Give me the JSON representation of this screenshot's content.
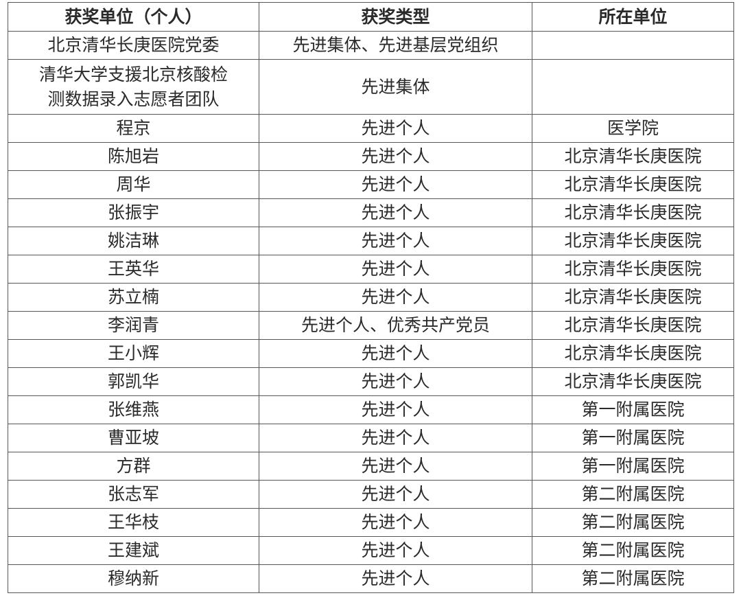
{
  "headers": [
    "获奖单位（个人）",
    "获奖类型",
    "所在单位"
  ],
  "rows": [
    {
      "name": "北京清华长庚医院党委",
      "type": "先进集体、先进基层党组织",
      "unit": ""
    },
    {
      "name": "清华大学支援北京核酸检测数据录入志愿者团队",
      "name_line1": "清华大学支援北京核酸检",
      "name_line2": "测数据录入志愿者团队",
      "type": "先进集体",
      "unit": ""
    },
    {
      "name": "程京",
      "type": "先进个人",
      "unit": "医学院"
    },
    {
      "name": "陈旭岩",
      "type": "先进个人",
      "unit": "北京清华长庚医院"
    },
    {
      "name": "周华",
      "type": "先进个人",
      "unit": "北京清华长庚医院"
    },
    {
      "name": "张振宇",
      "type": "先进个人",
      "unit": "北京清华长庚医院"
    },
    {
      "name": "姚洁琳",
      "type": "先进个人",
      "unit": "北京清华长庚医院"
    },
    {
      "name": "王英华",
      "type": "先进个人",
      "unit": "北京清华长庚医院"
    },
    {
      "name": "苏立楠",
      "type": "先进个人",
      "unit": "北京清华长庚医院"
    },
    {
      "name": "李润青",
      "type": "先进个人、优秀共产党员",
      "unit": "北京清华长庚医院"
    },
    {
      "name": "王小辉",
      "type": "先进个人",
      "unit": "北京清华长庚医院"
    },
    {
      "name": "郭凯华",
      "type": "先进个人",
      "unit": "北京清华长庚医院"
    },
    {
      "name": "张维燕",
      "type": "先进个人",
      "unit": "第一附属医院"
    },
    {
      "name": "曹亚坡",
      "type": "先进个人",
      "unit": "第一附属医院"
    },
    {
      "name": "方群",
      "type": "先进个人",
      "unit": "第一附属医院"
    },
    {
      "name": "张志军",
      "type": "先进个人",
      "unit": "第二附属医院"
    },
    {
      "name": "王华枝",
      "type": "先进个人",
      "unit": "第二附属医院"
    },
    {
      "name": "王建斌",
      "type": "先进个人",
      "unit": "第二附属医院"
    },
    {
      "name": "穆纳新",
      "type": "先进个人",
      "unit": "第二附属医院"
    }
  ]
}
